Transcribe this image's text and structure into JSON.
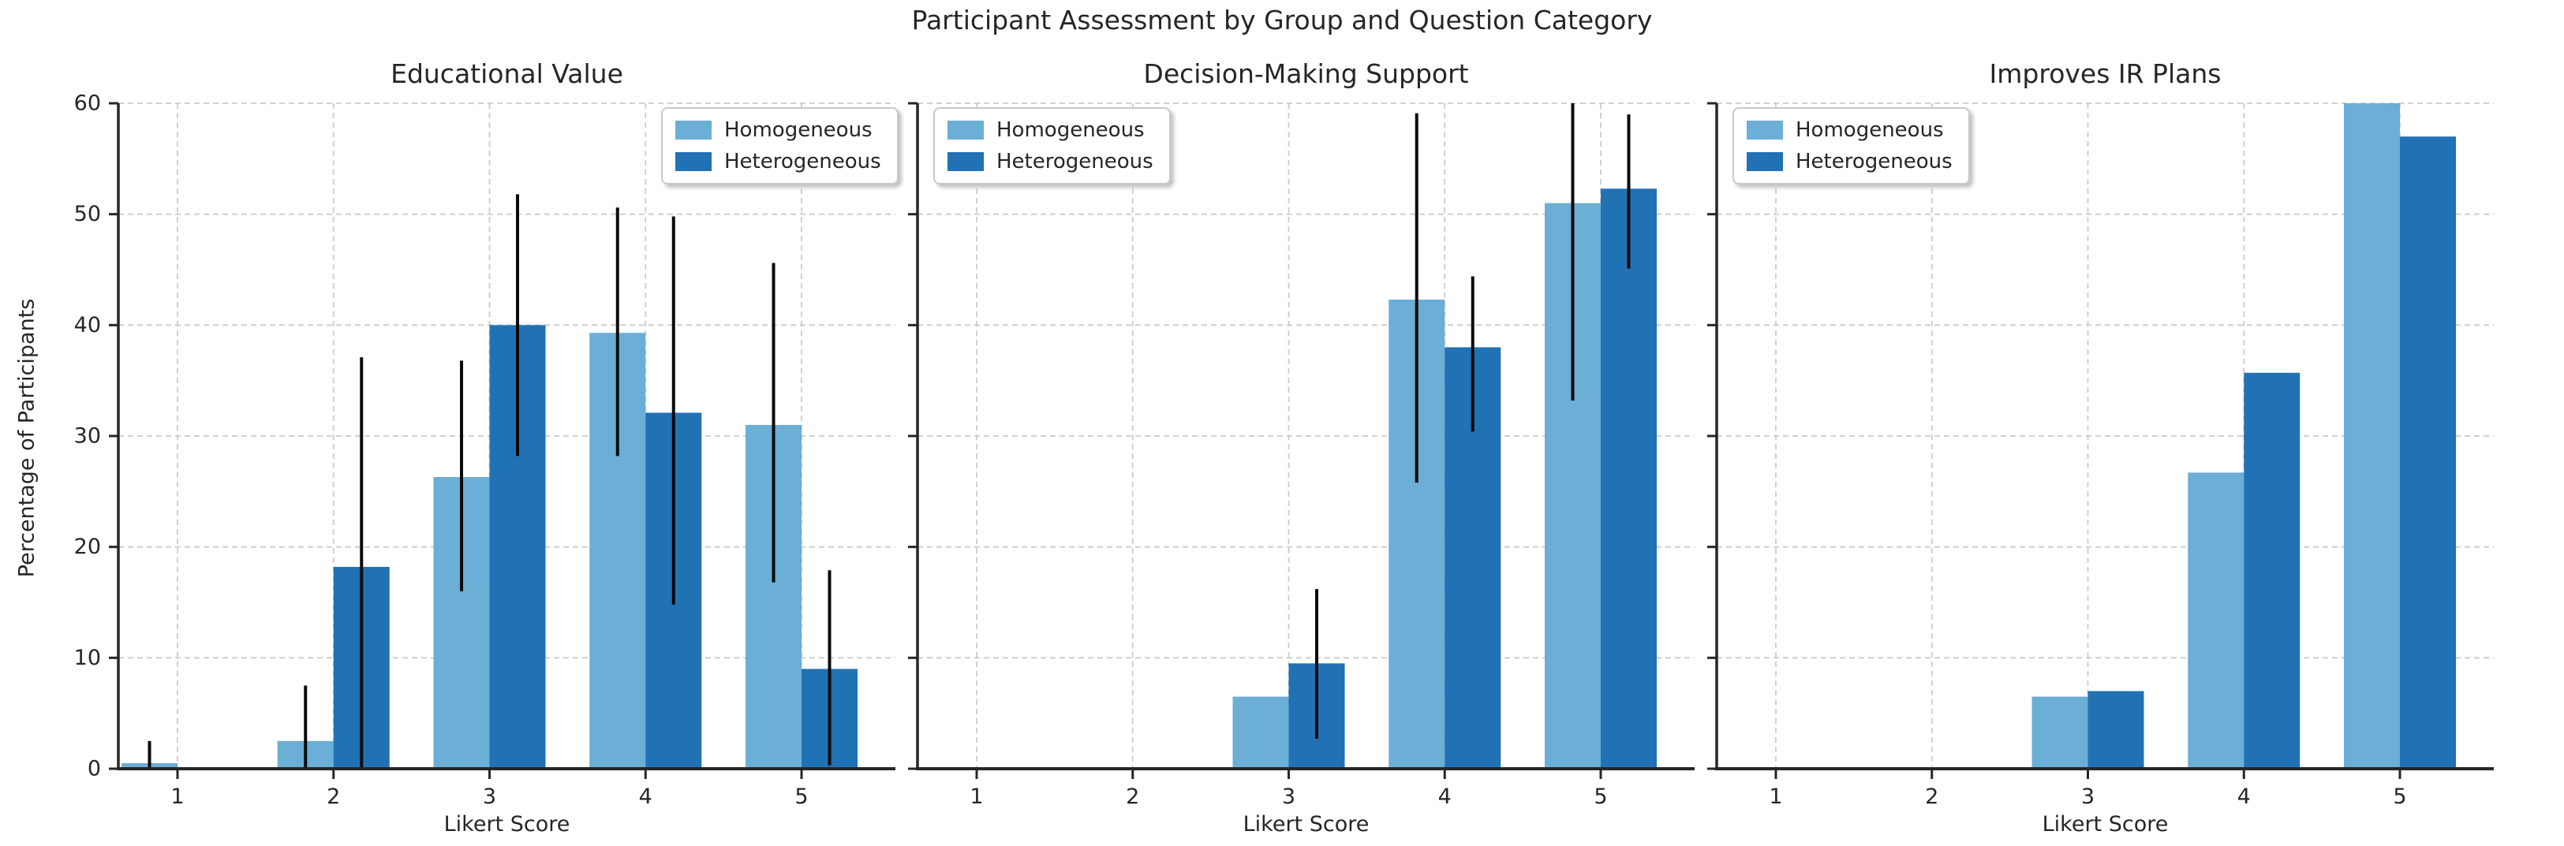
{
  "figure": {
    "suptitle": "Participant Assessment by Group and Question Category"
  },
  "legend": {
    "items": [
      {
        "label": "Homogeneous",
        "color": "#6baed6"
      },
      {
        "label": "Heterogeneous",
        "color": "#2171b5"
      }
    ]
  },
  "chart_data": {
    "type": "bar",
    "title": "Participant Assessment by Group and Question Category",
    "xlabel": "Likert Score",
    "ylabel": "Percentage of Participants",
    "categories": [
      "1",
      "2",
      "3",
      "4",
      "5"
    ],
    "yticks": [
      0,
      10,
      20,
      30,
      40,
      50,
      60
    ],
    "ylim": [
      0,
      60
    ],
    "grid": true,
    "error_bar_color": "#0a0a0a",
    "panels": [
      {
        "title": "Educational Value",
        "legend_loc": "upper right",
        "series": [
          {
            "name": "Homogeneous",
            "color": "#6baed6",
            "values": [
              0.5,
              2.5,
              26.3,
              39.3,
              31.0
            ],
            "err_lo": [
              0.0,
              0.0,
              16.0,
              28.2,
              16.8
            ],
            "err_hi": [
              2.5,
              7.5,
              36.8,
              50.6,
              45.6
            ]
          },
          {
            "name": "Heterogeneous",
            "color": "#2171b5",
            "values": [
              0,
              18.2,
              40.0,
              32.1,
              9.0
            ],
            "err_lo": [
              null,
              0.0,
              28.2,
              14.8,
              0.3
            ],
            "err_hi": [
              null,
              37.1,
              51.8,
              49.8,
              17.9
            ]
          }
        ]
      },
      {
        "title": "Decision-Making Support",
        "legend_loc": "upper left",
        "series": [
          {
            "name": "Homogeneous",
            "color": "#6baed6",
            "values": [
              0,
              0,
              6.5,
              42.3,
              51.0
            ],
            "err_lo": [
              null,
              null,
              null,
              25.8,
              33.2
            ],
            "err_hi": [
              null,
              null,
              null,
              59.1,
              60.0
            ]
          },
          {
            "name": "Heterogeneous",
            "color": "#2171b5",
            "values": [
              0,
              0,
              9.5,
              38.0,
              52.3
            ],
            "err_lo": [
              null,
              null,
              2.7,
              30.4,
              45.1
            ],
            "err_hi": [
              null,
              null,
              16.2,
              44.4,
              59.0
            ]
          }
        ]
      },
      {
        "title": "Improves IR Plans",
        "legend_loc": "upper left",
        "series": [
          {
            "name": "Homogeneous",
            "color": "#6baed6",
            "values": [
              0,
              0,
              6.5,
              26.7,
              60.0
            ],
            "err_lo": [
              null,
              null,
              null,
              null,
              null
            ],
            "err_hi": [
              null,
              null,
              null,
              null,
              null
            ]
          },
          {
            "name": "Heterogeneous",
            "color": "#2171b5",
            "values": [
              0,
              0,
              7.0,
              35.7,
              57.0
            ],
            "err_lo": [
              null,
              null,
              null,
              null,
              null
            ],
            "err_hi": [
              null,
              null,
              null,
              null,
              null
            ]
          }
        ]
      }
    ]
  }
}
